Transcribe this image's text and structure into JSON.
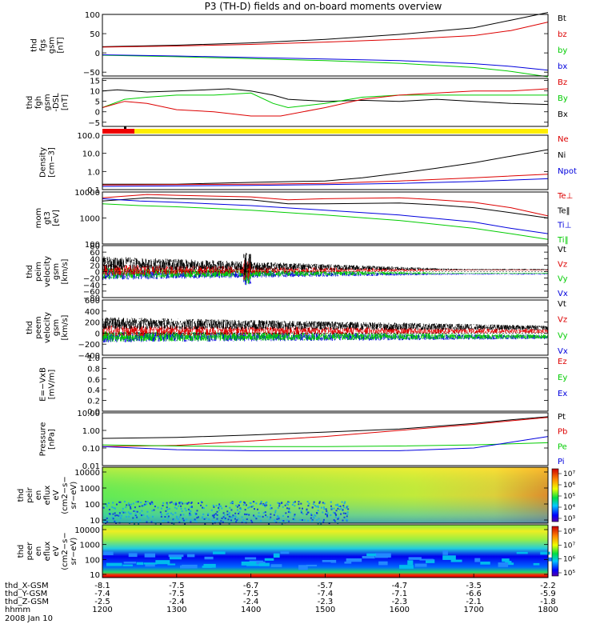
{
  "title": "P3 (TH-D) fields and on-board moments overview",
  "date_label": "2008 Jan 10",
  "time_axis": {
    "ticks": [
      1200,
      1300,
      1400,
      1500,
      1600,
      1700,
      1800
    ],
    "rows": [
      {
        "label": "thd_X-GSM",
        "values": [
          "-8.1",
          "-7.5",
          "-6.7",
          "-5.7",
          "-4.7",
          "-3.5",
          "-2.2"
        ]
      },
      {
        "label": "thd_Y-GSM",
        "values": [
          "-7.4",
          "-7.5",
          "-7.5",
          "-7.4",
          "-7.1",
          "-6.6",
          "-5.9"
        ]
      },
      {
        "label": "thd_Z-GSM",
        "values": [
          "-2.5",
          "-2.4",
          "-2.4",
          "-2.3",
          "-2.3",
          "-2.1",
          "-1.8"
        ]
      },
      {
        "label": "hhmm",
        "values": [
          "1200",
          "1300",
          "1400",
          "1500",
          "1600",
          "1700",
          "1800"
        ]
      }
    ]
  },
  "chart_data": [
    {
      "type": "line",
      "ylabel_lines": [
        "thd",
        "fgs",
        "gsm",
        "[nT]"
      ],
      "ylim": [
        -60,
        100
      ],
      "yticks": [
        "100",
        "50",
        "0",
        "−50"
      ],
      "legend": [
        {
          "name": "Bt",
          "color": "#000000"
        },
        {
          "name": "bz",
          "color": "#dd0000"
        },
        {
          "name": "by",
          "color": "#00cc00"
        },
        {
          "name": "bx",
          "color": "#0000dd"
        }
      ],
      "series": [
        {
          "name": "Bt",
          "color": "#000000",
          "x": [
            1200,
            1300,
            1400,
            1500,
            1600,
            1700,
            1750,
            1800
          ],
          "y": [
            16,
            20,
            26,
            35,
            48,
            65,
            85,
            105
          ]
        },
        {
          "name": "bz",
          "color": "#dd0000",
          "x": [
            1200,
            1300,
            1400,
            1500,
            1600,
            1700,
            1750,
            1800
          ],
          "y": [
            15,
            18,
            22,
            28,
            35,
            45,
            58,
            80
          ]
        },
        {
          "name": "by",
          "color": "#00cc00",
          "x": [
            1200,
            1300,
            1400,
            1500,
            1600,
            1700,
            1750,
            1800
          ],
          "y": [
            -6,
            -10,
            -15,
            -20,
            -27,
            -38,
            -48,
            -62
          ]
        },
        {
          "name": "bx",
          "color": "#0000dd",
          "x": [
            1200,
            1300,
            1400,
            1500,
            1600,
            1700,
            1750,
            1800
          ],
          "y": [
            -5,
            -8,
            -12,
            -16,
            -20,
            -28,
            -35,
            -45
          ]
        }
      ]
    },
    {
      "type": "line",
      "ylabel_lines": [
        "thd",
        "fgh",
        "gsm",
        "-DSL",
        "[nT]"
      ],
      "ylim": [
        -7,
        16
      ],
      "yticks": [
        "15",
        "10",
        "5",
        "0",
        "−5"
      ],
      "legend": [
        {
          "name": "Bz",
          "color": "#dd0000"
        },
        {
          "name": "By",
          "color": "#00cc00"
        },
        {
          "name": "Bx",
          "color": "#000000"
        }
      ],
      "series": [
        {
          "name": "Bx",
          "color": "#000000",
          "x": [
            1200,
            1220,
            1260,
            1300,
            1340,
            1370,
            1400,
            1430,
            1450,
            1500,
            1550,
            1600,
            1650,
            1700,
            1750,
            1800
          ],
          "y": [
            10,
            10.5,
            9.5,
            10,
            10.5,
            11,
            10,
            8,
            6,
            5,
            5.5,
            5,
            6,
            5,
            4,
            3.5
          ]
        },
        {
          "name": "By",
          "color": "#00cc00",
          "x": [
            1200,
            1230,
            1260,
            1300,
            1350,
            1400,
            1430,
            1450,
            1500,
            1550,
            1600,
            1650,
            1700,
            1750,
            1800
          ],
          "y": [
            2,
            6,
            7,
            8,
            8,
            9,
            4,
            2,
            4,
            7,
            8,
            8,
            8,
            8,
            8
          ]
        },
        {
          "name": "Bz",
          "color": "#dd0000",
          "x": [
            1200,
            1230,
            1260,
            1300,
            1350,
            1400,
            1440,
            1500,
            1550,
            1600,
            1650,
            1700,
            1750,
            1800
          ],
          "y": [
            2,
            5,
            4,
            1,
            0,
            -2,
            -2,
            2,
            6,
            8,
            9,
            10,
            10,
            11
          ]
        }
      ]
    },
    {
      "type": "line",
      "ylabel_lines": [
        "Density",
        "[cm−3]"
      ],
      "yscale": "log",
      "ylim": [
        0.1,
        100
      ],
      "yticks": [
        "100.0",
        "10.0",
        "1.0",
        "0.1"
      ],
      "legend": [
        {
          "name": "Ne",
          "color": "#dd0000"
        },
        {
          "name": "Ni",
          "color": "#000000"
        },
        {
          "name": "Npot",
          "color": "#0000dd"
        }
      ],
      "series": [
        {
          "name": "Ni",
          "color": "#000000",
          "x": [
            1200,
            1300,
            1400,
            1500,
            1550,
            1600,
            1650,
            1700,
            1750,
            1800
          ],
          "y": [
            0.2,
            0.2,
            0.25,
            0.3,
            0.45,
            0.8,
            1.5,
            3,
            7,
            16
          ]
        },
        {
          "name": "Ne",
          "color": "#dd0000",
          "x": [
            1200,
            1300,
            1400,
            1500,
            1600,
            1700,
            1800
          ],
          "y": [
            0.18,
            0.19,
            0.2,
            0.22,
            0.3,
            0.45,
            0.7
          ]
        },
        {
          "name": "Npot",
          "color": "#0000dd",
          "x": [
            1200,
            1300,
            1400,
            1500,
            1600,
            1700,
            1800
          ],
          "y": [
            0.15,
            0.16,
            0.17,
            0.19,
            0.22,
            0.28,
            0.4
          ]
        }
      ]
    },
    {
      "type": "line",
      "ylabel_lines": [
        "mom",
        "gt3",
        "[eV]"
      ],
      "yscale": "log",
      "ylim": [
        100,
        10000
      ],
      "yticks": [
        "10000",
        "1000",
        "100"
      ],
      "legend": [
        {
          "name": "Te⊥",
          "color": "#dd0000"
        },
        {
          "name": "Te‖",
          "color": "#000000"
        },
        {
          "name": "Ti⊥",
          "color": "#0000dd"
        },
        {
          "name": "Ti‖",
          "color": "#00cc00"
        }
      ],
      "series": [
        {
          "name": "Te⊥",
          "color": "#dd0000",
          "x": [
            1200,
            1260,
            1300,
            1400,
            1450,
            1500,
            1600,
            1650,
            1700,
            1750,
            1800
          ],
          "y": [
            6000,
            8000,
            7500,
            6500,
            5000,
            5500,
            6000,
            5000,
            4000,
            2500,
            1200
          ]
        },
        {
          "name": "Te‖",
          "color": "#000000",
          "x": [
            1200,
            1260,
            1300,
            1400,
            1450,
            1500,
            1600,
            1650,
            1700,
            1750,
            1800
          ],
          "y": [
            4500,
            6000,
            5500,
            5000,
            3500,
            3500,
            3800,
            3200,
            2500,
            1600,
            1000
          ]
        },
        {
          "name": "Ti⊥",
          "color": "#0000dd",
          "x": [
            1200,
            1250,
            1300,
            1400,
            1500,
            1600,
            1700,
            1750,
            1800
          ],
          "y": [
            5500,
            4500,
            4000,
            3000,
            2000,
            1300,
            700,
            400,
            250
          ]
        },
        {
          "name": "Ti‖",
          "color": "#00cc00",
          "x": [
            1200,
            1250,
            1300,
            1400,
            1500,
            1600,
            1700,
            1750,
            1800
          ],
          "y": [
            3500,
            3000,
            2700,
            2000,
            1300,
            800,
            400,
            250,
            150
          ]
        }
      ]
    },
    {
      "type": "line",
      "ylabel_lines": [
        "thd",
        "peim",
        "velocity",
        "gsm",
        "[km/s]"
      ],
      "ylim": [
        -80,
        80
      ],
      "yticks": [
        "80",
        "60",
        "40",
        "20",
        "0",
        "−20",
        "−40",
        "−60",
        "−80"
      ],
      "noise": true,
      "legend": [
        {
          "name": "Vt",
          "color": "#000000"
        },
        {
          "name": "Vz",
          "color": "#dd0000"
        },
        {
          "name": "Vy",
          "color": "#00cc00"
        },
        {
          "name": "Vx",
          "color": "#0000dd"
        }
      ],
      "series": []
    },
    {
      "type": "line",
      "ylabel_lines": [
        "thd",
        "peem",
        "velocity",
        "gsm",
        "[km/s]"
      ],
      "ylim": [
        -400,
        600
      ],
      "yticks": [
        "600",
        "400",
        "200",
        "0",
        "−200",
        "−400"
      ],
      "noise": true,
      "legend": [
        {
          "name": "Vt",
          "color": "#000000"
        },
        {
          "name": "Vz",
          "color": "#dd0000"
        },
        {
          "name": "Vy",
          "color": "#00cc00"
        },
        {
          "name": "Vx",
          "color": "#0000dd"
        }
      ],
      "series": []
    },
    {
      "type": "line",
      "ylabel_lines": [
        "E=−VxB",
        "[mV/m]"
      ],
      "ylim": [
        0,
        1
      ],
      "yticks": [
        "1.0",
        "0.8",
        "0.6",
        "0.4",
        "0.2",
        "0.0"
      ],
      "legend": [
        {
          "name": "Ez",
          "color": "#dd0000"
        },
        {
          "name": "Ey",
          "color": "#00cc00"
        },
        {
          "name": "Ex",
          "color": "#0000dd"
        }
      ],
      "series": []
    },
    {
      "type": "line",
      "ylabel_lines": [
        "Pressure",
        "[nPa]"
      ],
      "yscale": "log",
      "ylim": [
        0.01,
        10
      ],
      "yticks": [
        "10.00",
        "1.00",
        "0.10",
        "0.01"
      ],
      "legend": [
        {
          "name": "Pt",
          "color": "#000000"
        },
        {
          "name": "Pb",
          "color": "#dd0000"
        },
        {
          "name": "Pe",
          "color": "#00cc00"
        },
        {
          "name": "Pi",
          "color": "#0000dd"
        }
      ],
      "series": [
        {
          "name": "Pt",
          "color": "#000000",
          "x": [
            1200,
            1300,
            1400,
            1500,
            1600,
            1700,
            1750,
            1800
          ],
          "y": [
            0.35,
            0.4,
            0.55,
            0.8,
            1.2,
            2.5,
            4,
            6
          ]
        },
        {
          "name": "Pb",
          "color": "#dd0000",
          "x": [
            1200,
            1300,
            1400,
            1500,
            1600,
            1700,
            1750,
            1800
          ],
          "y": [
            0.12,
            0.14,
            0.25,
            0.45,
            1.0,
            2.2,
            3.5,
            5.5
          ]
        },
        {
          "name": "Pe",
          "color": "#00cc00",
          "x": [
            1200,
            1300,
            1400,
            1500,
            1600,
            1700,
            1800
          ],
          "y": [
            0.15,
            0.13,
            0.12,
            0.12,
            0.13,
            0.15,
            0.2
          ]
        },
        {
          "name": "Pi",
          "color": "#0000dd",
          "x": [
            1200,
            1300,
            1400,
            1500,
            1600,
            1700,
            1800
          ],
          "y": [
            0.12,
            0.08,
            0.07,
            0.07,
            0.07,
            0.1,
            0.45
          ]
        }
      ]
    },
    {
      "type": "heatmap",
      "ylabel_lines": [
        "thd",
        "peir",
        "en",
        "eflux",
        "eV",
        "(cm2−s−",
        "sr−eV)"
      ],
      "yscale": "log",
      "ylim": [
        10,
        20000
      ],
      "yticks": [
        "10000",
        "1000",
        "100",
        "10"
      ],
      "colorbar_ticks": [
        "10⁷",
        "10⁶",
        "10⁵",
        "10⁴",
        "10³"
      ]
    },
    {
      "type": "heatmap",
      "ylabel_lines": [
        "thd",
        "peer",
        "en",
        "eflux",
        "eV",
        "(cm2−s−",
        "sr−eV)"
      ],
      "yscale": "log",
      "ylim": [
        10,
        20000
      ],
      "yticks": [
        "10000",
        "1000",
        "100",
        "10"
      ],
      "colorbar_ticks": [
        "10⁸",
        "10⁷",
        "10⁶",
        "10⁵"
      ]
    }
  ]
}
